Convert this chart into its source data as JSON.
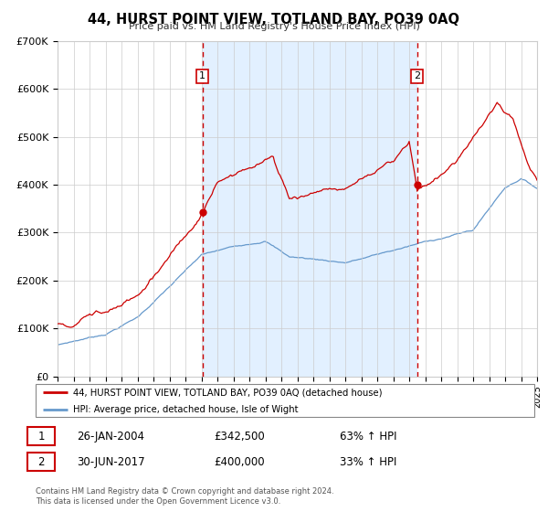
{
  "title": "44, HURST POINT VIEW, TOTLAND BAY, PO39 0AQ",
  "subtitle": "Price paid vs. HM Land Registry's House Price Index (HPI)",
  "legend_line1": "44, HURST POINT VIEW, TOTLAND BAY, PO39 0AQ (detached house)",
  "legend_line2": "HPI: Average price, detached house, Isle of Wight",
  "sale1_date": "26-JAN-2004",
  "sale1_price": "£342,500",
  "sale1_hpi": "63% ↑ HPI",
  "sale2_date": "30-JUN-2017",
  "sale2_price": "£400,000",
  "sale2_hpi": "33% ↑ HPI",
  "footer": "Contains HM Land Registry data © Crown copyright and database right 2024.\nThis data is licensed under the Open Government Licence v3.0.",
  "sale1_year": 2004.07,
  "sale2_year": 2017.5,
  "sale1_value": 342500,
  "sale2_value": 400000,
  "red_color": "#cc0000",
  "blue_color": "#6699cc",
  "fill_color": "#ddeeff",
  "plot_bg": "#ffffff",
  "grid_color": "#cccccc",
  "ylim": [
    0,
    700000
  ],
  "xlim_start": 1995,
  "xlim_end": 2025,
  "ytick_labels": [
    "£0",
    "£100K",
    "£200K",
    "£300K",
    "£400K",
    "£500K",
    "£600K",
    "£700K"
  ],
  "ytick_values": [
    0,
    100000,
    200000,
    300000,
    400000,
    500000,
    600000,
    700000
  ]
}
